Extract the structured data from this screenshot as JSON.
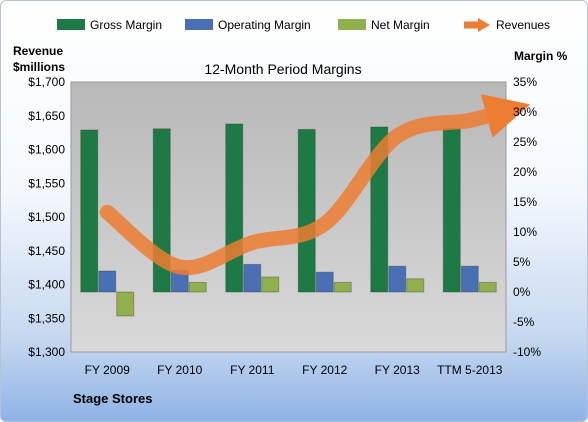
{
  "chart_data": {
    "type": "bar",
    "title": "12-Month Period Margins",
    "footer": "Stage Stores",
    "categories": [
      "FY 2009",
      "FY 2010",
      "FY 2011",
      "FY 2012",
      "FY 2013",
      "TTM 5-2013"
    ],
    "left_axis": {
      "label_line1": "Revenue",
      "label_line2": "$millions",
      "range": [
        1300,
        1700
      ],
      "ticks": [
        1300,
        1350,
        1400,
        1450,
        1500,
        1550,
        1600,
        1650,
        1700
      ],
      "tick_labels": [
        "$1,300",
        "$1,350",
        "$1,400",
        "$1,450",
        "$1,500",
        "$1,550",
        "$1,600",
        "$1,650",
        "$1,700"
      ]
    },
    "right_axis": {
      "label": "Margin %",
      "range": [
        -10,
        35
      ],
      "ticks": [
        -10,
        -5,
        0,
        5,
        10,
        15,
        20,
        25,
        30,
        35
      ],
      "tick_labels": [
        "-10%",
        "-5%",
        "0%",
        "5%",
        "10%",
        "15%",
        "20%",
        "25%",
        "30%",
        "35%"
      ]
    },
    "series": [
      {
        "name": "Gross Margin",
        "axis": "right",
        "color": "#1e7a45",
        "values": [
          27.0,
          27.2,
          28.0,
          27.1,
          27.5,
          27.3
        ]
      },
      {
        "name": "Operating Margin",
        "axis": "right",
        "color": "#4a6fb5",
        "values": [
          3.5,
          3.6,
          4.6,
          3.3,
          4.3,
          4.3
        ]
      },
      {
        "name": "Net Margin",
        "axis": "right",
        "color": "#8fb04c",
        "values": [
          -4.0,
          1.6,
          2.5,
          1.6,
          2.2,
          1.6
        ]
      },
      {
        "name": "Revenues",
        "axis": "left",
        "color": "#ed7d31",
        "type": "line",
        "values": [
          1507,
          1426,
          1462,
          1490,
          1620,
          1643
        ]
      }
    ],
    "legend": [
      "Gross Margin",
      "Operating Margin",
      "Net Margin",
      "Revenues"
    ],
    "legend_placement": "top",
    "grid": false,
    "plot_background": "#c0c0c0"
  }
}
